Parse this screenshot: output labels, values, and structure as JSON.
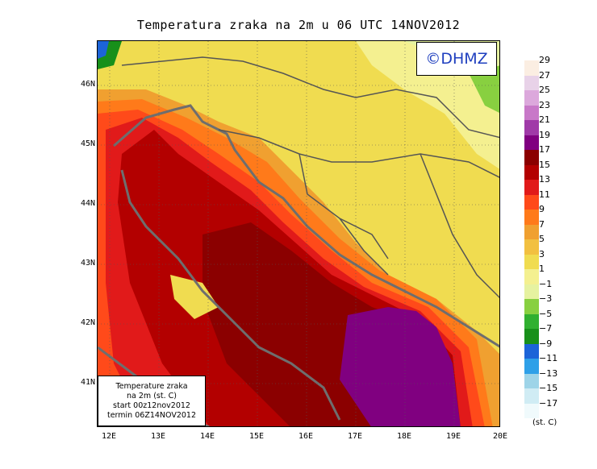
{
  "title": "Temperatura zraka na 2m u 06 UTC 14NOV2012",
  "logo_text": "©DHMZ",
  "info": {
    "line1": "Temperature zraka",
    "line2": "na 2m (st. C)",
    "line3": "start 00z12nov2012",
    "line4": "termin 06Z14NOV2012"
  },
  "lat_labels": [
    "46N",
    "45N",
    "44N",
    "43N",
    "42N",
    "41N"
  ],
  "lon_labels": [
    "12E",
    "13E",
    "14E",
    "15E",
    "16E",
    "17E",
    "18E",
    "19E",
    "20E"
  ],
  "legend": {
    "labels": [
      "29",
      "27",
      "25",
      "23",
      "21",
      "19",
      "17",
      "15",
      "13",
      "11",
      "9",
      "7",
      "5",
      "3",
      "1",
      "−1",
      "−3",
      "−5",
      "−7",
      "−9",
      "−11",
      "−13",
      "−15",
      "−17"
    ],
    "units": "(st. C)",
    "colors": [
      "#fbeee2",
      "#e8d2e8",
      "#dca8dc",
      "#c878c8",
      "#a03aa8",
      "#800080",
      "#8b0000",
      "#b30000",
      "#e11a1a",
      "#ff4a1a",
      "#ff7a1a",
      "#f0a030",
      "#f2c040",
      "#f0dc50",
      "#f4f090",
      "#e6f2a0",
      "#88d040",
      "#30b030",
      "#18901a",
      "#1c64d8",
      "#2ea0e8",
      "#9ed4e8",
      "#d0ecf4",
      "#f0fafc"
    ]
  }
}
